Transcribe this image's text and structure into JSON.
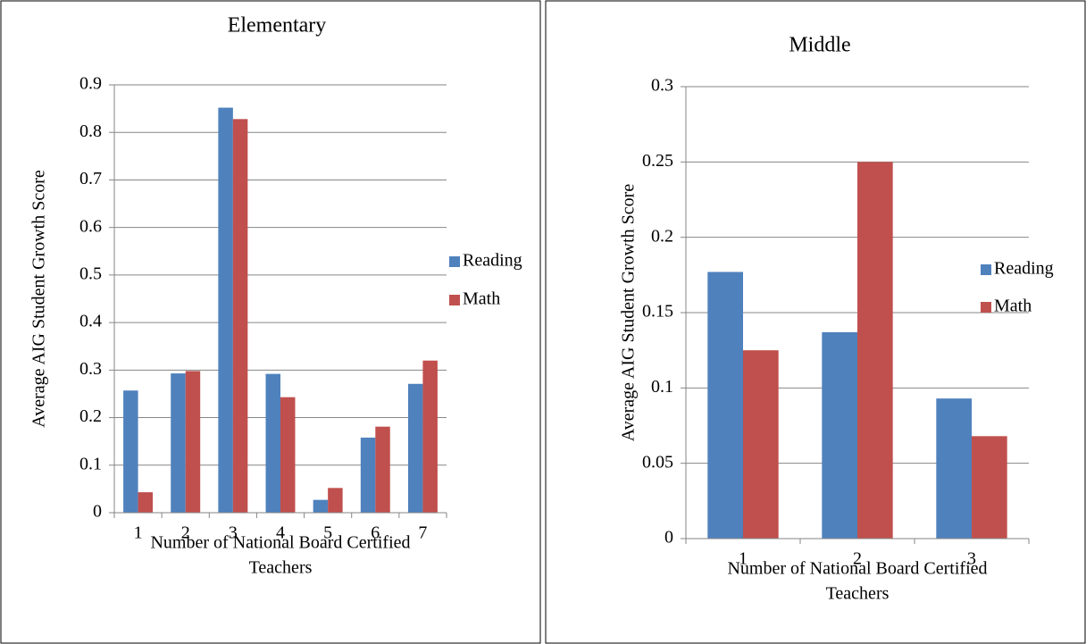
{
  "chart_data": [
    {
      "type": "bar",
      "title": "Elementary",
      "y_label": "Average AIG Student Growth Score",
      "x_label": [
        "Number of National Board Certified",
        "Teachers"
      ],
      "categories": [
        "1",
        "2",
        "3",
        "4",
        "5",
        "6",
        "7"
      ],
      "series": [
        {
          "name": "Reading",
          "color": "#4f81bd",
          "values": [
            0.257,
            0.293,
            0.852,
            0.292,
            0.027,
            0.158,
            0.271
          ]
        },
        {
          "name": "Math",
          "color": "#c0504d",
          "values": [
            0.043,
            0.298,
            0.828,
            0.243,
            0.052,
            0.181,
            0.32
          ]
        }
      ],
      "ylim": [
        0,
        0.9
      ],
      "yticks": [
        0,
        0.1,
        0.2,
        0.3,
        0.4,
        0.5,
        0.6,
        0.7,
        0.8,
        0.9
      ],
      "grid": true,
      "legend": "right"
    },
    {
      "type": "bar",
      "title": "Middle",
      "y_label": "Average AIG Student Growth Score",
      "x_label": [
        "Number of National Board Certified",
        "Teachers"
      ],
      "categories": [
        "1",
        "2",
        "3"
      ],
      "series": [
        {
          "name": "Reading",
          "color": "#4f81bd",
          "values": [
            0.177,
            0.137,
            0.093
          ]
        },
        {
          "name": "Math",
          "color": "#c0504d",
          "values": [
            0.125,
            0.25,
            0.068
          ]
        }
      ],
      "ylim": [
        0,
        0.3
      ],
      "yticks": [
        0,
        0.05,
        0.1,
        0.15,
        0.2,
        0.25,
        0.3
      ],
      "grid": true,
      "legend": "right"
    }
  ]
}
